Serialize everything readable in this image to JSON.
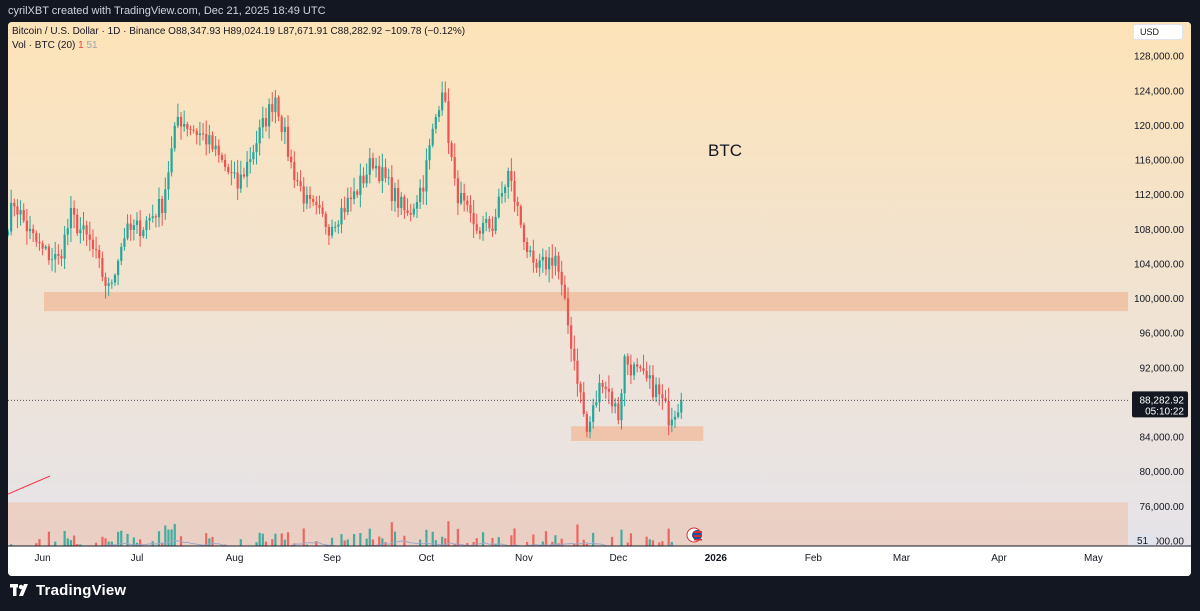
{
  "header": {
    "credit": "cyrilXBT created with TradingView.com, Dec 21, 2025 18:49 UTC"
  },
  "legend": {
    "symbol_line": "Bitcoin / U.S. Dollar · 1D · Binance",
    "ohlc": "O88,347.93 H89,024.19 L87,671.91 C88,282.92 −109.78 (−0.12%)",
    "vol_line": "Vol · BTC (20)",
    "vol_value": "1",
    "vol_ma": "51"
  },
  "price_scale": {
    "currency": "USD",
    "current_price": "88,282.92",
    "countdown": "05:10:22",
    "volume_label": "51"
  },
  "footer": {
    "brand": "TradingView"
  },
  "colors": {
    "up": "#26a69a",
    "down": "#ef5350",
    "zone": "#f0b99a",
    "bg_top": "#fde3b8",
    "bg_bottom": "#e4e3ec"
  },
  "chart_data": {
    "type": "candlestick",
    "title": "BTC",
    "xlabel": "",
    "ylabel": "",
    "ylim": [
      68000,
      132000
    ],
    "yticks": [
      "128,000.00",
      "124,000.00",
      "120,000.00",
      "116,000.00",
      "112,000.00",
      "108,000.00",
      "104,000.00",
      "100,000.00",
      "96,000.00",
      "92,000.00",
      "88,000.00",
      "84,000.00",
      "80,000.00",
      "76,000.00",
      "72,000.00"
    ],
    "yticks_values": [
      128000,
      124000,
      120000,
      116000,
      112000,
      108000,
      104000,
      100000,
      96000,
      92000,
      88000,
      84000,
      80000,
      76000,
      72000
    ],
    "x_range": [
      "2025-05-21",
      "2026-05-12"
    ],
    "x_ticks": [
      {
        "label": "Jun",
        "date": "2025-06-01"
      },
      {
        "label": "Jul",
        "date": "2025-07-01"
      },
      {
        "label": "Aug",
        "date": "2025-08-01"
      },
      {
        "label": "Sep",
        "date": "2025-09-01"
      },
      {
        "label": "Oct",
        "date": "2025-10-01"
      },
      {
        "label": "Nov",
        "date": "2025-11-01"
      },
      {
        "label": "Dec",
        "date": "2025-12-01"
      },
      {
        "label": "2026",
        "date": "2026-01-01"
      },
      {
        "label": "Feb",
        "date": "2026-02-01"
      },
      {
        "label": "Mar",
        "date": "2026-03-01"
      },
      {
        "label": "Apr",
        "date": "2026-04-01"
      },
      {
        "label": "May",
        "date": "2026-05-01"
      }
    ],
    "zones": [
      {
        "from": "2025-05-21",
        "to": "2026-05-12",
        "low": 98600,
        "high": 100800
      },
      {
        "from": "2025-11-16",
        "to": "2025-12-28",
        "low": 83600,
        "high": 85300
      }
    ],
    "volume_zone": {
      "top": 76500
    },
    "current_price": 88282.92,
    "ohlc_anchors": [
      {
        "date": "2025-05-21",
        "close": 109000
      },
      {
        "date": "2025-05-23",
        "close": 111200
      },
      {
        "date": "2025-05-28",
        "close": 107500
      },
      {
        "date": "2025-06-01",
        "close": 105500
      },
      {
        "date": "2025-06-06",
        "close": 104500
      },
      {
        "date": "2025-06-10",
        "close": 109500
      },
      {
        "date": "2025-06-16",
        "close": 106500
      },
      {
        "date": "2025-06-22",
        "close": 101000
      },
      {
        "date": "2025-06-27",
        "close": 107500
      },
      {
        "date": "2025-07-03",
        "close": 108500
      },
      {
        "date": "2025-07-09",
        "close": 111000
      },
      {
        "date": "2025-07-14",
        "close": 121000
      },
      {
        "date": "2025-07-23",
        "close": 118500
      },
      {
        "date": "2025-08-02",
        "close": 113000
      },
      {
        "date": "2025-08-14",
        "close": 123500
      },
      {
        "date": "2025-08-19",
        "close": 115500
      },
      {
        "date": "2025-08-24",
        "close": 111000
      },
      {
        "date": "2025-08-31",
        "close": 108500
      },
      {
        "date": "2025-09-08",
        "close": 112000
      },
      {
        "date": "2025-09-14",
        "close": 116000
      },
      {
        "date": "2025-09-25",
        "close": 109500
      },
      {
        "date": "2025-09-30",
        "close": 113500
      },
      {
        "date": "2025-10-06",
        "close": 124800
      },
      {
        "date": "2025-10-10",
        "close": 113000
      },
      {
        "date": "2025-10-16",
        "close": 108000
      },
      {
        "date": "2025-10-22",
        "close": 108500
      },
      {
        "date": "2025-10-27",
        "close": 114500
      },
      {
        "date": "2025-11-04",
        "close": 103000
      },
      {
        "date": "2025-11-11",
        "close": 105000
      },
      {
        "date": "2025-11-18",
        "close": 91000
      },
      {
        "date": "2025-11-21",
        "close": 84500
      },
      {
        "date": "2025-11-26",
        "close": 91000
      },
      {
        "date": "2025-12-01",
        "close": 86500
      },
      {
        "date": "2025-12-03",
        "close": 93000
      },
      {
        "date": "2025-12-08",
        "close": 91000
      },
      {
        "date": "2025-12-13",
        "close": 89500
      },
      {
        "date": "2025-12-17",
        "close": 86500
      },
      {
        "date": "2025-12-21",
        "close": 88282.92
      }
    ]
  }
}
